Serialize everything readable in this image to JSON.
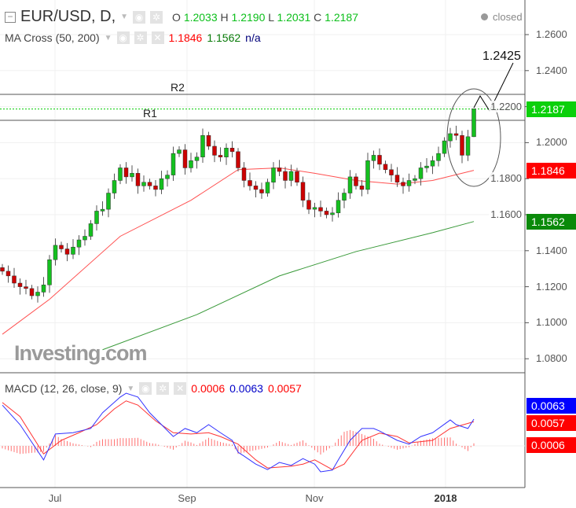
{
  "header": {
    "symbol": "EUR/USD, D,",
    "o_label": "O",
    "open": "1.2033",
    "h_label": "H",
    "high": "1.2190",
    "l_label": "L",
    "low": "1.2031",
    "c_label": "C",
    "close": "1.2187",
    "status": "closed"
  },
  "ma_indicator": {
    "label": "MA Cross (50, 200)",
    "v1": "1.1846",
    "v2": "1.1562",
    "v3": "n/a"
  },
  "macd_indicator": {
    "label": "MACD (12, 26, close, 9)",
    "hist": "0.0006",
    "macd": "0.0063",
    "signal": "0.0057"
  },
  "watermark": "Investing.com",
  "colors": {
    "up": "#14c01f",
    "down": "#cc0000",
    "ma50": "#ff5050",
    "ma200": "#3a9a3a",
    "macd": "#3333ff",
    "signal": "#ff3333"
  },
  "chart_data": [
    {
      "type": "candlestick",
      "title": "EUR/USD, D",
      "ylim": [
        1.07,
        1.27
      ],
      "y_ticks": [
        "1.2600",
        "1.2400",
        "1.2200",
        "1.2000",
        "1.1800",
        "1.1600",
        "1.1400",
        "1.1200",
        "1.1000",
        "1.0800"
      ],
      "x_ticks": [
        "Jul",
        "Sep",
        "Nov",
        "2018"
      ],
      "closes": [
        1.1286,
        1.126,
        1.122,
        1.12,
        1.119,
        1.115,
        1.117,
        1.121,
        1.135,
        1.143,
        1.141,
        1.138,
        1.142,
        1.146,
        1.148,
        1.155,
        1.162,
        1.163,
        1.172,
        1.179,
        1.186,
        1.181,
        1.183,
        1.176,
        1.178,
        1.176,
        1.174,
        1.18,
        1.182,
        1.194,
        1.196,
        1.186,
        1.19,
        1.192,
        1.204,
        1.198,
        1.193,
        1.192,
        1.197,
        1.195,
        1.186,
        1.179,
        1.176,
        1.174,
        1.172,
        1.178,
        1.186,
        1.184,
        1.179,
        1.184,
        1.178,
        1.168,
        1.163,
        1.164,
        1.162,
        1.16,
        1.161,
        1.168,
        1.172,
        1.181,
        1.176,
        1.174,
        1.19,
        1.193,
        1.188,
        1.185,
        1.182,
        1.178,
        1.176,
        1.179,
        1.18,
        1.186,
        1.187,
        1.19,
        1.194,
        1.201,
        1.205,
        1.204,
        1.193,
        1.2033,
        1.2187
      ],
      "last_candle": {
        "open": 1.2033,
        "high": 1.219,
        "low": 1.2031,
        "close": 1.2187
      },
      "ma50": [
        [
          0,
          1.0936
        ],
        [
          8,
          1.113
        ],
        [
          20,
          1.148
        ],
        [
          32,
          1.168
        ],
        [
          40,
          1.185
        ],
        [
          47,
          1.186
        ],
        [
          53,
          1.183
        ],
        [
          60,
          1.179
        ],
        [
          67,
          1.177
        ],
        [
          73,
          1.179
        ],
        [
          80,
          1.1846
        ]
      ],
      "ma200": [
        [
          17,
          1.085
        ],
        [
          33,
          1.1045
        ],
        [
          47,
          1.126
        ],
        [
          60,
          1.1395
        ],
        [
          73,
          1.15
        ],
        [
          80,
          1.1562
        ]
      ],
      "levels": [
        {
          "name": "R2",
          "value": 1.2268
        },
        {
          "name": "R1",
          "value": 1.2124
        }
      ],
      "last_price_line": 1.2187,
      "price_tags": [
        {
          "text": "1.2187",
          "color": "#0bd00b",
          "value": 1.2187
        },
        {
          "text": "1.1846",
          "color": "#ff0000",
          "value": 1.1846
        },
        {
          "text": "1.1562",
          "color": "#0a8a0a",
          "value": 1.1562
        }
      ],
      "target_annotation": "1.2425"
    },
    {
      "type": "line",
      "title": "MACD (12, 26, close, 9)",
      "macd": [
        [
          0,
          0.0096
        ],
        [
          3,
          0.005
        ],
        [
          7,
          -0.0033
        ],
        [
          9,
          0.0028
        ],
        [
          12,
          0.0031
        ],
        [
          15,
          0.0041
        ],
        [
          17,
          0.0078
        ],
        [
          20,
          0.0115
        ],
        [
          21,
          0.0124
        ],
        [
          23,
          0.0115
        ],
        [
          25,
          0.0078
        ],
        [
          27,
          0.005
        ],
        [
          29,
          0.0022
        ],
        [
          31,
          0.0041
        ],
        [
          33,
          0.0031
        ],
        [
          35,
          0.005
        ],
        [
          37,
          0.0031
        ],
        [
          39,
          0.0013
        ],
        [
          40,
          -0.0015
        ],
        [
          41,
          -0.0024
        ],
        [
          43,
          -0.0043
        ],
        [
          45,
          -0.0056
        ],
        [
          47,
          -0.0039
        ],
        [
          49,
          -0.0046
        ],
        [
          51,
          -0.003
        ],
        [
          53,
          -0.0043
        ],
        [
          54,
          -0.0061
        ],
        [
          56,
          -0.0057
        ],
        [
          57,
          -0.0033
        ],
        [
          59,
          0.0013
        ],
        [
          61,
          0.0041
        ],
        [
          63,
          0.0041
        ],
        [
          64,
          0.0035
        ],
        [
          67,
          0.0013
        ],
        [
          69,
          0.0004
        ],
        [
          71,
          0.0022
        ],
        [
          73,
          0.0031
        ],
        [
          76,
          0.0061
        ],
        [
          77,
          0.005
        ],
        [
          79,
          0.0041
        ],
        [
          80,
          0.0063
        ]
      ],
      "signal": [
        [
          0,
          0.0102
        ],
        [
          3,
          0.0069
        ],
        [
          7,
          -0.0019
        ],
        [
          10,
          0.0013
        ],
        [
          13,
          0.0031
        ],
        [
          16,
          0.005
        ],
        [
          19,
          0.0087
        ],
        [
          21,
          0.0106
        ],
        [
          23,
          0.0096
        ],
        [
          26,
          0.0059
        ],
        [
          29,
          0.0031
        ],
        [
          32,
          0.0028
        ],
        [
          35,
          0.0031
        ],
        [
          37,
          0.0022
        ],
        [
          40,
          0.0004
        ],
        [
          43,
          -0.0033
        ],
        [
          45,
          -0.0052
        ],
        [
          49,
          -0.0048
        ],
        [
          51,
          -0.0043
        ],
        [
          53,
          -0.0033
        ],
        [
          56,
          -0.0056
        ],
        [
          58,
          -0.0043
        ],
        [
          61,
          0.0013
        ],
        [
          64,
          0.003
        ],
        [
          67,
          0.0022
        ],
        [
          69,
          0.0007
        ],
        [
          73,
          0.0013
        ],
        [
          76,
          0.0041
        ],
        [
          80,
          0.0057
        ]
      ],
      "value_tags": [
        {
          "text": "0.0063",
          "color": "#0000ff"
        },
        {
          "text": "0.0057",
          "color": "#ff0000"
        },
        {
          "text": "0.0006",
          "color": "#ff0000"
        }
      ]
    }
  ]
}
